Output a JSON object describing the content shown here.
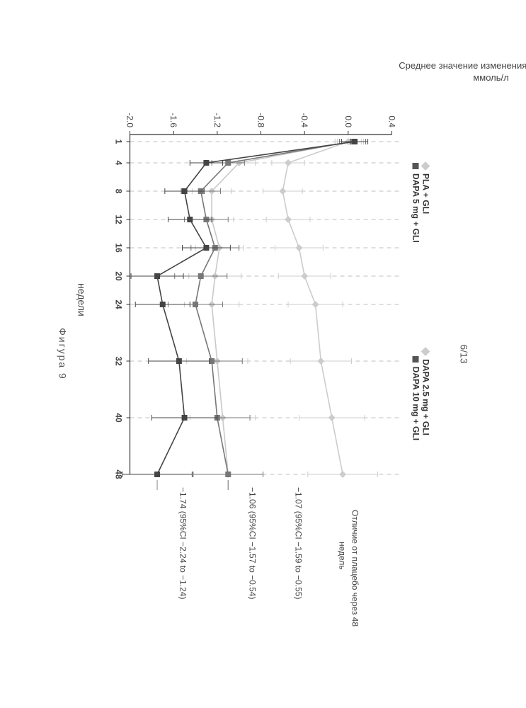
{
  "header": {
    "page": "6/13"
  },
  "footer": {
    "caption": "Фигура 9"
  },
  "chart": {
    "type": "line",
    "y_label_line1": "Среднее значение изменения уровня FPG,",
    "y_label_line2": "ммоль/л",
    "x_label": "недели",
    "y_ticks": [
      0.4,
      0.0,
      -0.4,
      -0.8,
      -1.2,
      -1.6,
      -2.0
    ],
    "y_lim": [
      -2.0,
      0.4
    ],
    "x_ticks": [
      1,
      4,
      8,
      12,
      16,
      20,
      24,
      32,
      40,
      48
    ],
    "x_lim": [
      0,
      48
    ],
    "grid_color": "#bfbfbf",
    "axis_color": "#333333",
    "background_color": "#ffffff",
    "box_border": "#ffffff",
    "legend": [
      "PLA + GLI",
      "DAPA 2.5 mg + GLI",
      "DAPA 5 mg + GLI",
      "DAPA 10 mg + GLI"
    ],
    "annot_header": [
      "Отличие от плацебо через 48",
      "недель"
    ],
    "annots": [
      "−1.07 (95%CI −1.59 to −0.55)",
      "−1.06 (95%CI −1.57 to −0.54)",
      "−1.74 (95%CI −2.24 to −1.24)"
    ],
    "series": [
      {
        "name": "PLA + GLI",
        "color": "#cccccc",
        "marker": "diamond",
        "x": [
          1,
          4,
          8,
          12,
          16,
          20,
          24,
          32,
          40,
          48
        ],
        "y": [
          0.0,
          -0.55,
          -0.6,
          -0.55,
          -0.45,
          -0.4,
          -0.3,
          -0.25,
          -0.15,
          -0.05
        ],
        "err": [
          0.12,
          0.15,
          0.18,
          0.2,
          0.22,
          0.24,
          0.25,
          0.28,
          0.3,
          0.32
        ]
      },
      {
        "name": "DAPA 2.5 mg + GLI",
        "color": "#c9c9c9",
        "marker": "diamond",
        "x": [
          1,
          4,
          8,
          12,
          16,
          20,
          24,
          32,
          40,
          48
        ],
        "y": [
          0.02,
          -1.0,
          -1.25,
          -1.25,
          -1.18,
          -1.22,
          -1.25,
          -1.2,
          -1.15,
          -1.1
        ],
        "err": [
          0.12,
          0.15,
          0.18,
          0.2,
          0.22,
          0.24,
          0.25,
          0.28,
          0.3,
          0.32
        ]
      },
      {
        "name": "DAPA 5 mg + GLI",
        "color": "#777777",
        "marker": "square",
        "x": [
          1,
          4,
          8,
          12,
          16,
          20,
          24,
          32,
          40,
          48
        ],
        "y": [
          0.04,
          -1.1,
          -1.35,
          -1.3,
          -1.22,
          -1.35,
          -1.4,
          -1.25,
          -1.2,
          -1.1
        ],
        "err": [
          0.12,
          0.15,
          0.18,
          0.2,
          0.22,
          0.24,
          0.25,
          0.28,
          0.3,
          0.32
        ]
      },
      {
        "name": "DAPA 10 mg + GLI",
        "color": "#444444",
        "marker": "square",
        "x": [
          1,
          4,
          8,
          12,
          16,
          20,
          24,
          32,
          40,
          48
        ],
        "y": [
          0.06,
          -1.3,
          -1.5,
          -1.45,
          -1.3,
          -1.75,
          -1.7,
          -1.55,
          -1.5,
          -1.75
        ],
        "err": [
          0.12,
          0.15,
          0.18,
          0.2,
          0.22,
          0.24,
          0.25,
          0.28,
          0.3,
          0.32
        ]
      }
    ]
  }
}
